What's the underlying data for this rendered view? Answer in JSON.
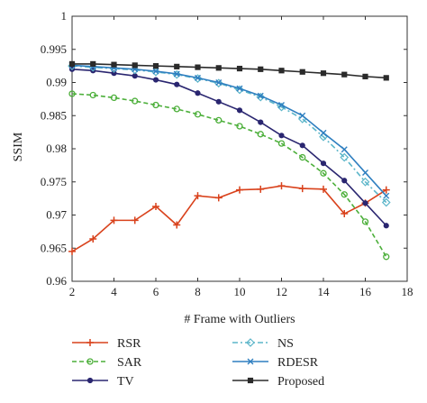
{
  "chart_data": {
    "type": "line",
    "title": "",
    "xlabel": "# Frame with Outliers",
    "ylabel": "SSIM",
    "xlim": [
      2,
      18
    ],
    "ylim": [
      0.96,
      1.0
    ],
    "xticks": [
      2,
      4,
      6,
      8,
      10,
      12,
      14,
      16,
      18
    ],
    "yticks": [
      0.96,
      0.965,
      0.97,
      0.975,
      0.98,
      0.985,
      0.99,
      0.995,
      1
    ],
    "xtick_labels": [
      "2",
      "4",
      "6",
      "8",
      "10",
      "12",
      "14",
      "16",
      "18"
    ],
    "ytick_labels": [
      "0.96",
      "0.965",
      "0.97",
      "0.975",
      "0.98",
      "0.985",
      "0.99",
      "0.995",
      "1"
    ],
    "grid": false,
    "legend_position": "below the plot, two columns",
    "x": [
      2,
      3,
      4,
      5,
      6,
      7,
      8,
      9,
      10,
      11,
      12,
      13,
      14,
      15,
      16,
      17
    ],
    "series": [
      {
        "name": "RSR",
        "color": "#d9421c",
        "marker": "plus",
        "dash": "solid",
        "values": [
          0.9645,
          0.9664,
          0.9692,
          0.9692,
          0.9713,
          0.9685,
          0.9729,
          0.9726,
          0.9738,
          0.9739,
          0.9744,
          0.974,
          0.9739,
          0.9702,
          0.9718,
          0.9738
        ]
      },
      {
        "name": "SAR",
        "color": "#4caf3a",
        "marker": "circle",
        "dash": "dashed",
        "values": [
          0.9883,
          0.9881,
          0.9877,
          0.9872,
          0.9866,
          0.986,
          0.9852,
          0.9843,
          0.9834,
          0.9822,
          0.9808,
          0.9787,
          0.9763,
          0.9731,
          0.969,
          0.9637
        ]
      },
      {
        "name": "TV",
        "color": "#2a2670",
        "marker": "dot",
        "dash": "solid",
        "values": [
          0.992,
          0.9918,
          0.9914,
          0.991,
          0.9904,
          0.9897,
          0.9884,
          0.9871,
          0.9858,
          0.984,
          0.982,
          0.9805,
          0.9778,
          0.9752,
          0.9718,
          0.9684
        ]
      },
      {
        "name": "NS",
        "color": "#5bb5c9",
        "marker": "diamond",
        "dash": "dashdot",
        "values": [
          0.9925,
          0.9923,
          0.9921,
          0.9919,
          0.9916,
          0.9912,
          0.9906,
          0.9899,
          0.9889,
          0.9878,
          0.9863,
          0.9845,
          0.9818,
          0.9787,
          0.975,
          0.9719
        ]
      },
      {
        "name": "RDESR",
        "color": "#2f7fc0",
        "marker": "x",
        "dash": "solid",
        "values": [
          0.9926,
          0.9924,
          0.9922,
          0.992,
          0.9917,
          0.9913,
          0.9907,
          0.99,
          0.9891,
          0.988,
          0.9866,
          0.985,
          0.9824,
          0.9799,
          0.9764,
          0.9729
        ]
      },
      {
        "name": "Proposed",
        "color": "#2b2b2b",
        "marker": "square",
        "dash": "solid",
        "values": [
          0.9928,
          0.9928,
          0.9927,
          0.9926,
          0.9925,
          0.9924,
          0.9923,
          0.9922,
          0.9921,
          0.992,
          0.9918,
          0.9916,
          0.9914,
          0.9912,
          0.9909,
          0.9907
        ]
      }
    ]
  }
}
